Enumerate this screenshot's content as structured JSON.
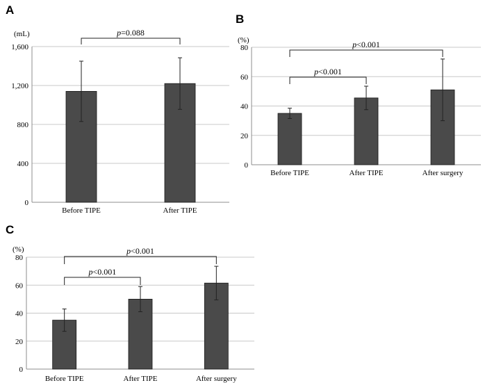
{
  "chart_data": [
    {
      "type": "bar",
      "panel": "A",
      "unit": "(mL)",
      "categories": [
        "Before TIPE",
        "After TIPE"
      ],
      "values": [
        1140,
        1220
      ],
      "errors": [
        310,
        265
      ],
      "ylim": [
        0,
        1600
      ],
      "yticks": [
        "0",
        "400",
        "800",
        "1,200",
        "1,600"
      ],
      "ytick_values": [
        0,
        400,
        800,
        1200,
        1600
      ],
      "grid": true,
      "comparisons": [
        {
          "from": 0,
          "to": 1,
          "p_symbol": "p",
          "label": "=0.088"
        }
      ]
    },
    {
      "type": "bar",
      "panel": "B",
      "unit": "(%)",
      "categories": [
        "Before TIPE",
        "After TIPE",
        "After surgery"
      ],
      "values": [
        35,
        45.5,
        51
      ],
      "errors": [
        3.5,
        8,
        21
      ],
      "ylim": [
        0,
        80
      ],
      "yticks": [
        "0",
        "20",
        "40",
        "60",
        "80"
      ],
      "ytick_values": [
        0,
        20,
        40,
        60,
        80
      ],
      "grid": true,
      "comparisons": [
        {
          "from": 0,
          "to": 1,
          "p_symbol": "p",
          "label": "<0.001"
        },
        {
          "from": 0,
          "to": 2,
          "p_symbol": "p",
          "label": "<0.001"
        }
      ]
    },
    {
      "type": "bar",
      "panel": "C",
      "unit": "(%)",
      "categories": [
        "Before TIPE",
        "After TIPE",
        "After surgery"
      ],
      "values": [
        35,
        50,
        61.5
      ],
      "errors": [
        8,
        9,
        12
      ],
      "ylim": [
        0,
        80
      ],
      "yticks": [
        "0",
        "20",
        "40",
        "60",
        "80"
      ],
      "ytick_values": [
        0,
        20,
        40,
        60,
        80
      ],
      "grid": true,
      "comparisons": [
        {
          "from": 0,
          "to": 1,
          "p_symbol": "p",
          "label": "<0.001"
        },
        {
          "from": 0,
          "to": 2,
          "p_symbol": "p",
          "label": "<0.001"
        }
      ]
    }
  ],
  "colors": {
    "bar": "#4a4a4a",
    "grid": "#c8c8c8",
    "axis": "#8c8c8c"
  }
}
